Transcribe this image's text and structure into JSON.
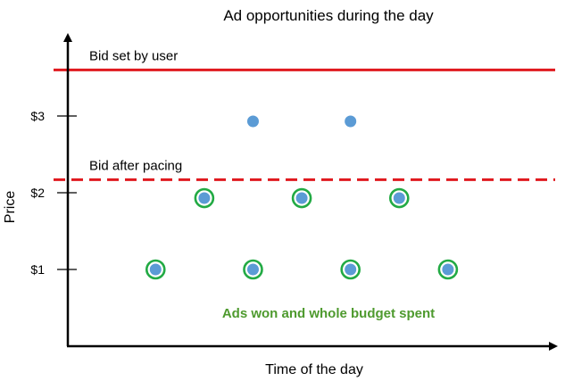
{
  "chart_data": {
    "type": "scatter",
    "title": "Ad opportunities during the day",
    "xlabel": "Time of the day",
    "ylabel": "Price",
    "yticks": [
      {
        "value": 1,
        "label": "$1"
      },
      {
        "value": 2,
        "label": "$2"
      },
      {
        "value": 3,
        "label": "$3"
      }
    ],
    "ylim": [
      0,
      4.0
    ],
    "xlim": [
      0,
      10
    ],
    "reference_lines": [
      {
        "label": "Bid set by user",
        "value": 3.6,
        "style": "solid",
        "color": "#e0191f"
      },
      {
        "label": "Bid after pacing",
        "value": 2.17,
        "style": "dashed",
        "color": "#e0191f"
      }
    ],
    "points": [
      {
        "x": 1.8,
        "y": 1,
        "won": true
      },
      {
        "x": 2.8,
        "y": 1.93,
        "won": true
      },
      {
        "x": 3.8,
        "y": 1,
        "won": true
      },
      {
        "x": 3.8,
        "y": 2.93,
        "won": false
      },
      {
        "x": 4.8,
        "y": 1.93,
        "won": true
      },
      {
        "x": 5.8,
        "y": 1,
        "won": true
      },
      {
        "x": 5.8,
        "y": 2.93,
        "won": false
      },
      {
        "x": 6.8,
        "y": 1.93,
        "won": true
      },
      {
        "x": 7.8,
        "y": 1,
        "won": true
      }
    ],
    "annotation": "Ads won and whole budget spent",
    "colors": {
      "point": "#5b9bd5",
      "won_ring": "#22aa44",
      "annotation": "#4e9a2e",
      "axis": "#000000"
    }
  }
}
